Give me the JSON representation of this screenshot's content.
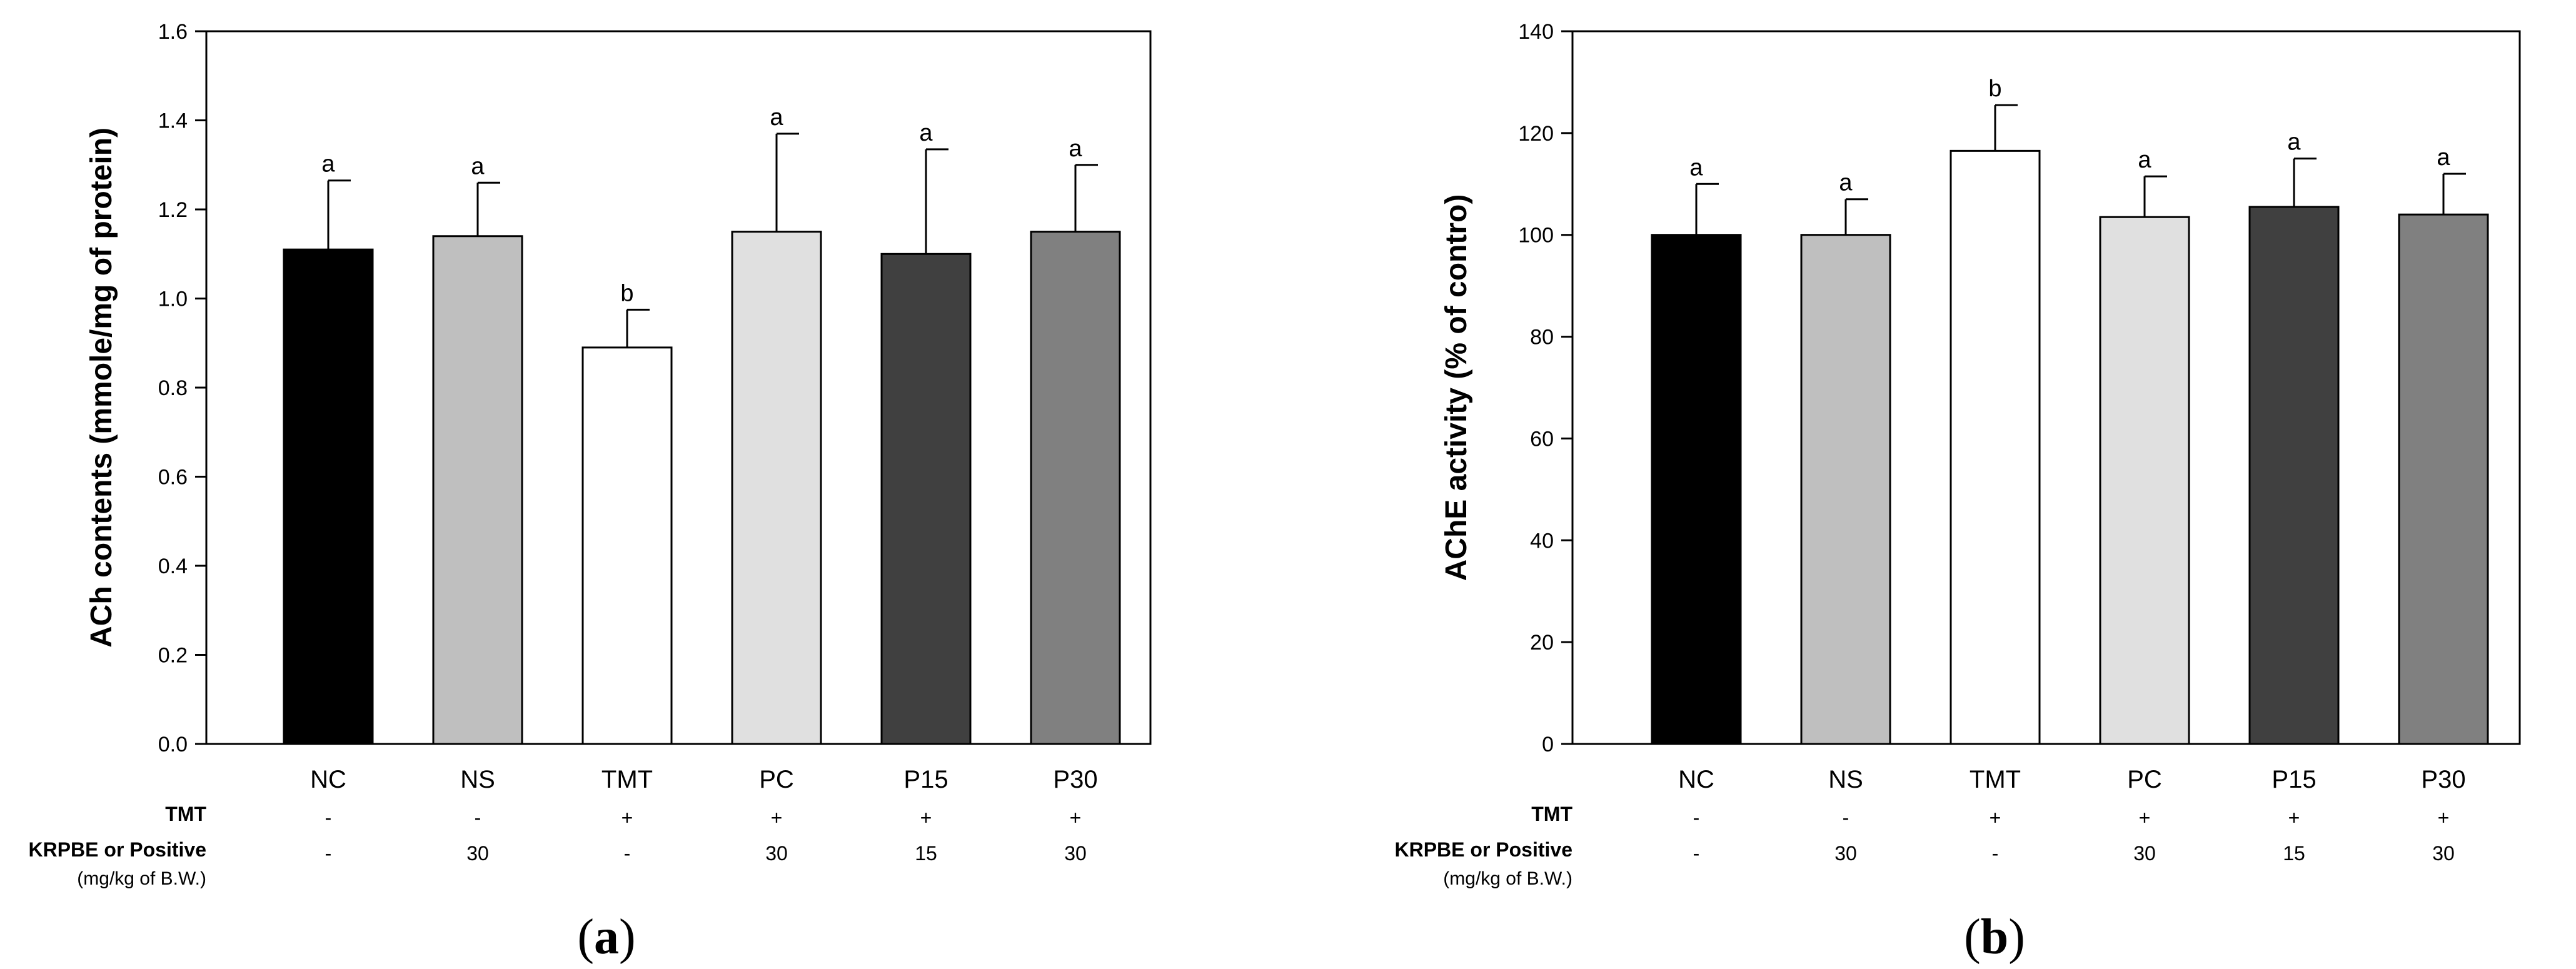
{
  "chart_data": [
    {
      "type": "bar",
      "ylabel": "ACh contents (mmole/mg of protein)",
      "xlabel": "",
      "ylim": [
        0,
        1.6
      ],
      "yticks": [
        "0.0",
        "0.2",
        "0.4",
        "0.6",
        "0.8",
        "1.0",
        "1.2",
        "1.4",
        "1.6"
      ],
      "categories": [
        "NC",
        "NS",
        "TMT",
        "PC",
        "P15",
        "P30"
      ],
      "values": [
        1.11,
        1.14,
        0.89,
        1.15,
        1.1,
        1.15
      ],
      "errors": [
        0.155,
        0.12,
        0.085,
        0.22,
        0.235,
        0.15
      ],
      "significance": [
        "a",
        "a",
        "b",
        "a",
        "a",
        "a"
      ],
      "bar_colors": [
        "#000000",
        "#bfbfbf",
        "#ffffff",
        "#e0e0e0",
        "#404040",
        "#808080"
      ],
      "treatment_rows": [
        {
          "label": "TMT",
          "sublabel": "",
          "values": [
            "-",
            "-",
            "+",
            "+",
            "+",
            "+"
          ]
        },
        {
          "label": "KRPBE or Positive",
          "sublabel": "(mg/kg of B.W.)",
          "values": [
            "-",
            "30",
            "-",
            "30",
            "15",
            "30"
          ]
        }
      ],
      "caption": {
        "open": "(",
        "letter": "a",
        "close": ")"
      }
    },
    {
      "type": "bar",
      "ylabel": "AChE activity (% of contro)",
      "xlabel": "",
      "ylim": [
        0,
        140
      ],
      "yticks": [
        "0",
        "20",
        "40",
        "60",
        "80",
        "100",
        "120",
        "140"
      ],
      "categories": [
        "NC",
        "NS",
        "TMT",
        "PC",
        "P15",
        "P30"
      ],
      "values": [
        100,
        100,
        116.5,
        103.5,
        105.5,
        104
      ],
      "errors": [
        10,
        7,
        9,
        8,
        9.5,
        8
      ],
      "significance": [
        "a",
        "a",
        "b",
        "a",
        "a",
        "a"
      ],
      "bar_colors": [
        "#000000",
        "#bfbfbf",
        "#ffffff",
        "#e0e0e0",
        "#404040",
        "#808080"
      ],
      "treatment_rows": [
        {
          "label": "TMT",
          "sublabel": "",
          "values": [
            "-",
            "-",
            "+",
            "+",
            "+",
            "+"
          ]
        },
        {
          "label": "KRPBE or Positive",
          "sublabel": "(mg/kg of B.W.)",
          "values": [
            "-",
            "30",
            "-",
            "30",
            "15",
            "30"
          ]
        }
      ],
      "caption": {
        "open": "(",
        "letter": "b",
        "close": ")"
      }
    }
  ]
}
